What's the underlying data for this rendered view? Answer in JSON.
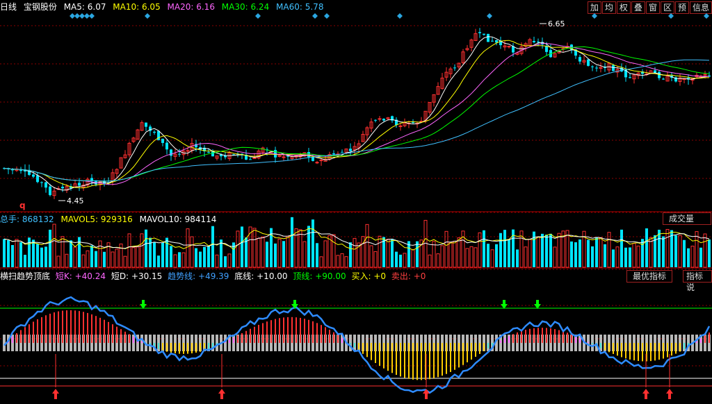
{
  "price_header": {
    "period": "日线",
    "stock_name": "宝钢股份",
    "ma": [
      {
        "label": "MA5: 6.07",
        "color": "#ffffff"
      },
      {
        "label": "MA10: 6.05",
        "color": "#ffff00"
      },
      {
        "label": "MA20: 6.16",
        "color": "#ff66ff"
      },
      {
        "label": "MA30: 6.24",
        "color": "#00ff00"
      },
      {
        "label": "MA60: 5.78",
        "color": "#40c0ff"
      }
    ]
  },
  "toolbar": [
    "加",
    "均",
    "权",
    "叠",
    "窗",
    "区",
    "预",
    "信息"
  ],
  "price_chart": {
    "high_label": "6.65",
    "low_label": "4.45",
    "marker": "q"
  },
  "volume_header": {
    "items": [
      {
        "label": "总手: 868132",
        "color": "#40c0ff"
      },
      {
        "label": "MAVOL5: 929316",
        "color": "#ffff00"
      },
      {
        "label": "MAVOL10: 984114",
        "color": "#ffffff"
      }
    ],
    "button": "成交量"
  },
  "indicator_header": {
    "items": [
      {
        "label": "横扫趋势顶底",
        "color": "#ffffff"
      },
      {
        "label": "短K: +40.24",
        "color": "#ff66ff"
      },
      {
        "label": "短D: +30.15",
        "color": "#ffffff"
      },
      {
        "label": "趋势线: +49.39",
        "color": "#40a0ff"
      },
      {
        "label": "底线: +10.00",
        "color": "#ffffff"
      },
      {
        "label": "顶线: +90.00",
        "color": "#00ff00"
      },
      {
        "label": "买入: +0",
        "color": "#ffff00"
      },
      {
        "label": "卖出: +0",
        "color": "#ff4040"
      }
    ],
    "buttons": [
      "最优指标",
      "指标说"
    ]
  },
  "colors": {
    "up": "#ff3030",
    "down": "#00e5ff",
    "ma5": "#ffffff",
    "ma10": "#ffff00",
    "ma20": "#ff66ff",
    "ma30": "#00ff00",
    "ma60": "#40c0ff",
    "grid": "#8b0000",
    "signal_diamond": "#2aa6e0"
  }
}
